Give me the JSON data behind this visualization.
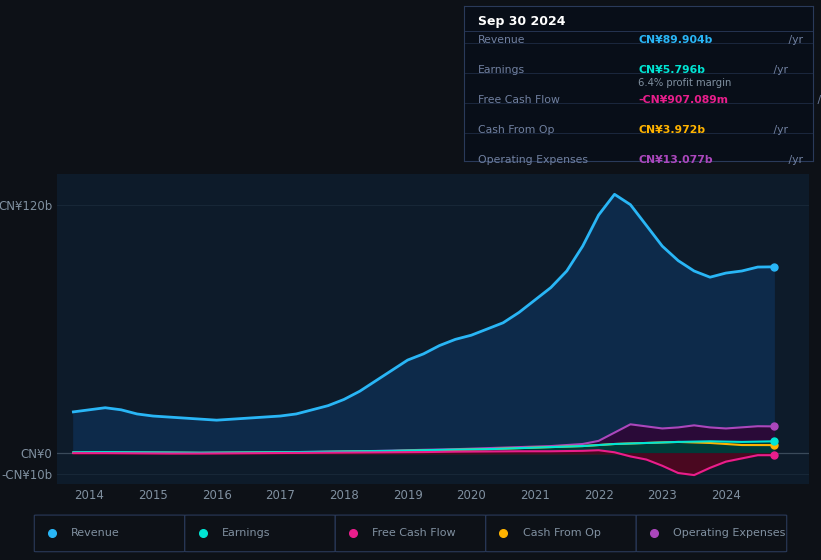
{
  "bg_color": "#0d1117",
  "plot_bg_color": "#0d1b2a",
  "grid_color": "#1a2a3a",
  "text_color": "#8090a0",
  "ylim_min": -15,
  "ylim_max": 135,
  "xlim_min": 2013.5,
  "xlim_max": 2025.3,
  "series": {
    "revenue": {
      "color": "#29b6f6",
      "fill_color": "#0d2a4a",
      "label": "Revenue",
      "values_x": [
        2013.75,
        2014.0,
        2014.25,
        2014.5,
        2014.75,
        2015.0,
        2015.25,
        2015.5,
        2015.75,
        2016.0,
        2016.25,
        2016.5,
        2016.75,
        2017.0,
        2017.25,
        2017.5,
        2017.75,
        2018.0,
        2018.25,
        2018.5,
        2018.75,
        2019.0,
        2019.25,
        2019.5,
        2019.75,
        2020.0,
        2020.25,
        2020.5,
        2020.75,
        2021.0,
        2021.25,
        2021.5,
        2021.75,
        2022.0,
        2022.25,
        2022.5,
        2022.75,
        2023.0,
        2023.25,
        2023.5,
        2023.75,
        2024.0,
        2024.25,
        2024.5,
        2024.75
      ],
      "values_y": [
        20,
        21,
        22,
        21,
        19,
        18,
        17.5,
        17,
        16.5,
        16,
        16.5,
        17,
        17.5,
        18,
        19,
        21,
        23,
        26,
        30,
        35,
        40,
        45,
        48,
        52,
        55,
        57,
        60,
        63,
        68,
        74,
        80,
        88,
        100,
        115,
        125,
        120,
        110,
        100,
        93,
        88,
        85,
        87,
        88,
        89.9,
        90
      ]
    },
    "earnings": {
      "color": "#00e5d4",
      "fill_color": "#003a38",
      "label": "Earnings",
      "values_x": [
        2013.75,
        2014.25,
        2014.75,
        2015.25,
        2015.75,
        2016.25,
        2016.75,
        2017.25,
        2017.75,
        2018.25,
        2018.75,
        2019.25,
        2019.75,
        2020.25,
        2020.75,
        2021.25,
        2021.75,
        2022.25,
        2022.75,
        2023.25,
        2023.75,
        2024.25,
        2024.75
      ],
      "values_y": [
        0.5,
        0.6,
        0.5,
        0.4,
        0.3,
        0.4,
        0.5,
        0.6,
        0.8,
        1.0,
        1.2,
        1.5,
        1.8,
        2.0,
        2.5,
        3.0,
        3.5,
        4.5,
        5.0,
        5.5,
        5.8,
        5.5,
        5.796
      ]
    },
    "free_cash_flow": {
      "color": "#e91e8c",
      "fill_color": "#4a0820",
      "label": "Free Cash Flow",
      "values_x": [
        2013.75,
        2014.25,
        2014.75,
        2015.25,
        2015.75,
        2016.25,
        2016.75,
        2017.25,
        2017.75,
        2018.25,
        2018.75,
        2019.25,
        2019.75,
        2020.25,
        2020.75,
        2021.25,
        2021.75,
        2022.0,
        2022.25,
        2022.5,
        2022.75,
        2023.0,
        2023.25,
        2023.5,
        2023.75,
        2024.0,
        2024.5,
        2024.75
      ],
      "values_y": [
        0.1,
        0.1,
        0.0,
        -0.1,
        -0.1,
        0.0,
        0.1,
        0.2,
        0.3,
        0.4,
        0.5,
        0.6,
        0.8,
        0.9,
        1.0,
        1.0,
        1.2,
        1.5,
        0.5,
        -1.5,
        -3.0,
        -6.0,
        -9.5,
        -10.5,
        -7.0,
        -4.0,
        -0.9,
        -0.9
      ]
    },
    "cash_from_op": {
      "color": "#ffb300",
      "fill_color": "#3a2800",
      "label": "Cash From Op",
      "values_x": [
        2013.75,
        2014.25,
        2014.75,
        2015.25,
        2015.75,
        2016.25,
        2016.75,
        2017.25,
        2017.75,
        2018.25,
        2018.75,
        2019.25,
        2019.75,
        2020.25,
        2020.75,
        2021.25,
        2021.75,
        2022.25,
        2022.75,
        2023.25,
        2023.75,
        2024.25,
        2024.75
      ],
      "values_y": [
        0.3,
        0.4,
        0.3,
        0.3,
        0.2,
        0.3,
        0.4,
        0.5,
        0.7,
        0.9,
        1.1,
        1.4,
        1.7,
        2.0,
        2.5,
        3.0,
        3.5,
        4.5,
        5.0,
        5.5,
        5.0,
        4.0,
        3.972
      ]
    },
    "operating_expenses": {
      "color": "#ab47bc",
      "fill_color": "#2a0a38",
      "label": "Operating Expenses",
      "values_x": [
        2013.75,
        2014.25,
        2014.75,
        2015.25,
        2015.75,
        2016.25,
        2016.75,
        2017.25,
        2017.75,
        2018.25,
        2018.75,
        2019.25,
        2019.75,
        2020.25,
        2020.75,
        2021.25,
        2021.75,
        2022.0,
        2022.25,
        2022.5,
        2022.75,
        2023.0,
        2023.25,
        2023.5,
        2023.75,
        2024.0,
        2024.5,
        2024.75
      ],
      "values_y": [
        0.4,
        0.5,
        0.4,
        0.3,
        0.2,
        0.3,
        0.4,
        0.6,
        0.8,
        1.0,
        1.3,
        1.7,
        2.0,
        2.5,
        3.0,
        3.5,
        4.5,
        6.0,
        10.0,
        14.0,
        13.0,
        12.0,
        12.5,
        13.5,
        12.5,
        12.0,
        13.077,
        13.0
      ]
    }
  },
  "info_box": {
    "title": "Sep 30 2024",
    "title_color": "#ffffff",
    "bg_color": "#080e18",
    "border_color": "#2a3a5a",
    "label_color": "#7080a0",
    "rows": [
      {
        "label": "Revenue",
        "value": "CN¥89.904b",
        "value_color": "#29b6f6",
        "suffix": " /yr",
        "extra": null,
        "extra_color": null
      },
      {
        "label": "Earnings",
        "value": "CN¥5.796b",
        "value_color": "#00e5d4",
        "suffix": " /yr",
        "extra": "6.4% profit margin",
        "extra_color": "#8090a0"
      },
      {
        "label": "Free Cash Flow",
        "value": "-CN¥907.089m",
        "value_color": "#e91e8c",
        "suffix": " /yr",
        "extra": null,
        "extra_color": null
      },
      {
        "label": "Cash From Op",
        "value": "CN¥3.972b",
        "value_color": "#ffb300",
        "suffix": " /yr",
        "extra": null,
        "extra_color": null
      },
      {
        "label": "Operating Expenses",
        "value": "CN¥13.077b",
        "value_color": "#ab47bc",
        "suffix": " /yr",
        "extra": null,
        "extra_color": null
      }
    ]
  },
  "legend_items": [
    {
      "label": "Revenue",
      "color": "#29b6f6"
    },
    {
      "label": "Earnings",
      "color": "#00e5d4"
    },
    {
      "label": "Free Cash Flow",
      "color": "#e91e8c"
    },
    {
      "label": "Cash From Op",
      "color": "#ffb300"
    },
    {
      "label": "Operating Expenses",
      "color": "#ab47bc"
    }
  ],
  "xticks": [
    2014,
    2015,
    2016,
    2017,
    2018,
    2019,
    2020,
    2021,
    2022,
    2023,
    2024
  ],
  "ytick_vals": [
    120,
    0,
    -10
  ],
  "ytick_labels": [
    "CN¥120b",
    "CN¥0",
    "-CN¥10b"
  ]
}
